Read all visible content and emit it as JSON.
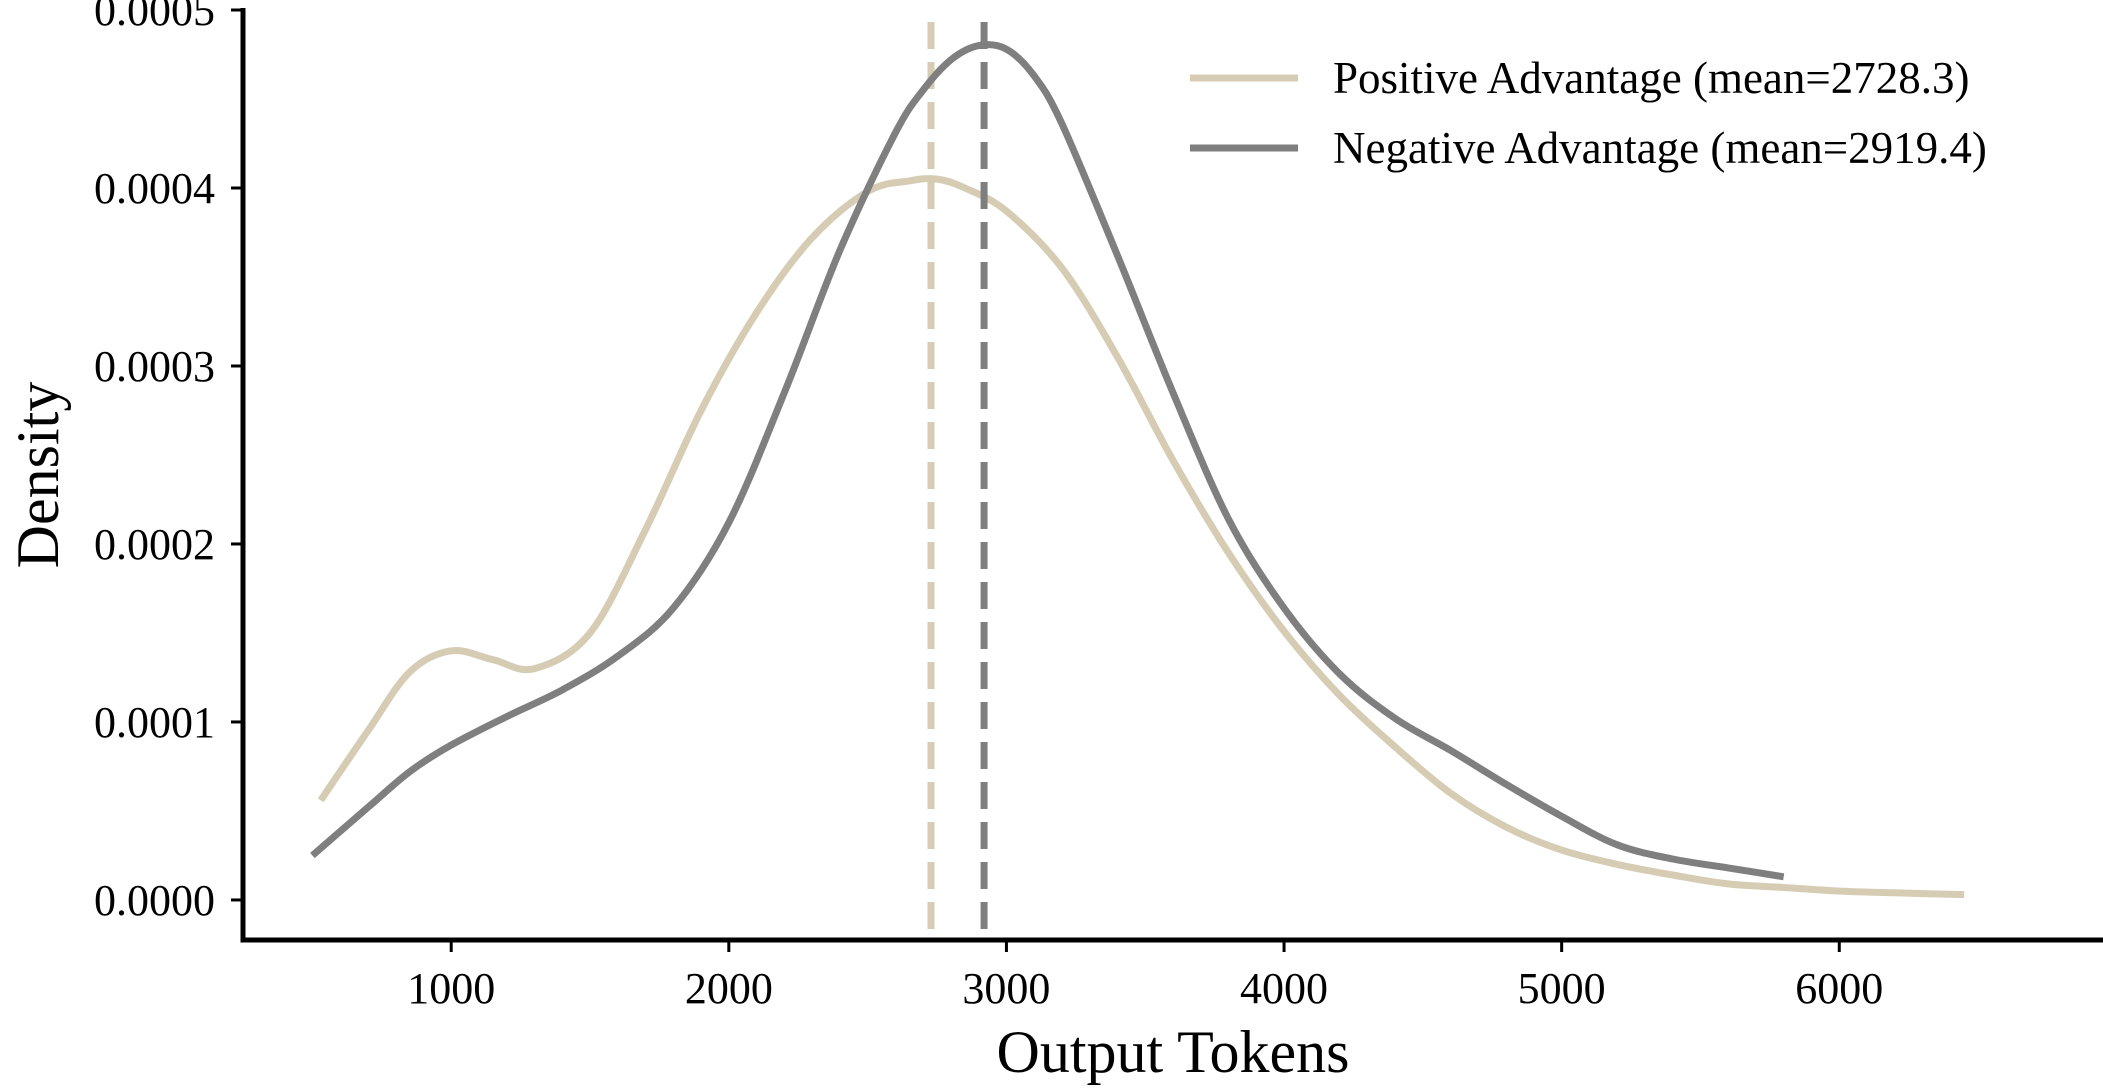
{
  "chart_data": {
    "type": "line",
    "title": "",
    "xlabel": "Output Tokens",
    "ylabel": "Density",
    "xlim": [
      250,
      6950
    ],
    "ylim": [
      -2.25e-05,
      0.0005
    ],
    "x_ticks": [
      1000,
      2000,
      3000,
      4000,
      5000,
      6000
    ],
    "x_tick_labels": [
      "1000",
      "2000",
      "3000",
      "4000",
      "5000",
      "6000"
    ],
    "y_ticks": [
      0.0,
      0.0001,
      0.0002,
      0.0003,
      0.0004,
      0.0005
    ],
    "y_tick_labels": [
      "0.0000",
      "0.0001",
      "0.0002",
      "0.0003",
      "0.0004",
      "0.0005"
    ],
    "grid": false,
    "legend_position": "top-right",
    "series": [
      {
        "name": "Positive Advantage (mean=2728.3)",
        "color": "#d6ccb4",
        "mean": 2728.3,
        "x": [
          530,
          700,
          850,
          1000,
          1150,
          1300,
          1500,
          1700,
          1900,
          2100,
          2300,
          2500,
          2650,
          2750,
          2850,
          3000,
          3200,
          3400,
          3600,
          3800,
          4000,
          4200,
          4400,
          4600,
          4800,
          5000,
          5200,
          5400,
          5600,
          5800,
          6000,
          6200,
          6450
        ],
        "y": [
          5.6e-05,
          9.5e-05,
          0.000128,
          0.00014,
          0.000135,
          0.00013,
          0.00015,
          0.000208,
          0.000275,
          0.00033,
          0.000372,
          0.000398,
          0.000404,
          0.000405,
          0.0004,
          0.000387,
          0.000355,
          0.000305,
          0.000247,
          0.000195,
          0.000151,
          0.000115,
          8.6e-05,
          6e-05,
          4.1e-05,
          2.8e-05,
          2e-05,
          1.4e-05,
          9e-06,
          7e-06,
          5e-06,
          4e-06,
          3e-06
        ]
      },
      {
        "name": "Negative Advantage (mean=2919.4)",
        "color": "#7f7f7f",
        "mean": 2919.4,
        "x": [
          500,
          700,
          850,
          1000,
          1200,
          1400,
          1600,
          1800,
          2000,
          2200,
          2400,
          2600,
          2700,
          2800,
          2900,
          3000,
          3100,
          3200,
          3400,
          3600,
          3800,
          4000,
          4200,
          4400,
          4600,
          4800,
          5000,
          5200,
          5400,
          5600,
          5800
        ],
        "y": [
          2.5e-05,
          5.2e-05,
          7.2e-05,
          8.7e-05,
          0.000103,
          0.000118,
          0.000137,
          0.000164,
          0.000212,
          0.000285,
          0.000365,
          0.000431,
          0.000455,
          0.000472,
          0.00048,
          0.000478,
          0.000463,
          0.000436,
          0.000362,
          0.000285,
          0.000214,
          0.000164,
          0.000127,
          0.000102,
          8.4e-05,
          6.5e-05,
          4.7e-05,
          3.1e-05,
          2.3e-05,
          1.8e-05,
          1.3e-05
        ]
      }
    ]
  }
}
